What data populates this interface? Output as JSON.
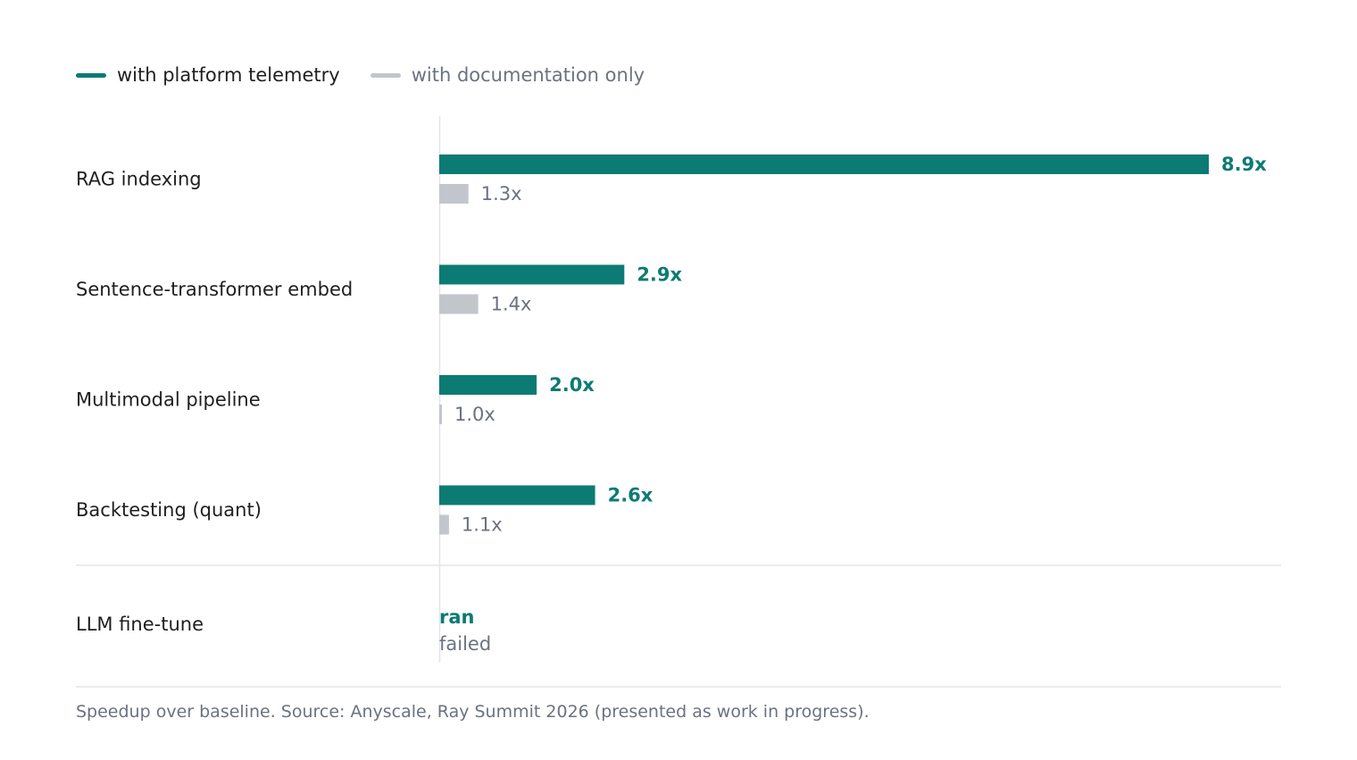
{
  "colors": {
    "primary": "#0c7b73",
    "secondary": "#c2c6cc",
    "text": "#1f1f1f",
    "muted": "#6b7280",
    "rule": "#e3e5e8"
  },
  "legend": {
    "primary_label": "with platform telemetry",
    "secondary_label": "with documentation only"
  },
  "chart_data": {
    "type": "bar",
    "orientation": "horizontal",
    "categories": [
      "RAG indexing",
      "Sentence-transformer embed",
      "Multimodal pipeline",
      "Backtesting (quant)"
    ],
    "series": [
      {
        "name": "with platform telemetry",
        "values": [
          8.9,
          2.9,
          2.0,
          2.6
        ],
        "labels": [
          "8.9x",
          "2.9x",
          "2.0x",
          "2.6x"
        ]
      },
      {
        "name": "with documentation only",
        "values": [
          1.3,
          1.4,
          1.0,
          1.1
        ],
        "labels": [
          "1.3x",
          "1.4x",
          "1.0x",
          "1.1x"
        ]
      }
    ],
    "baseline": 1.0,
    "xlim": [
      1.0,
      8.9
    ],
    "extra_row": {
      "category": "LLM fine-tune",
      "primary_text": "ran",
      "secondary_text": "failed"
    }
  },
  "footer": {
    "note": "Speedup over baseline. Source: Anyscale, Ray Summit 2026 (presented as work in progress)."
  }
}
